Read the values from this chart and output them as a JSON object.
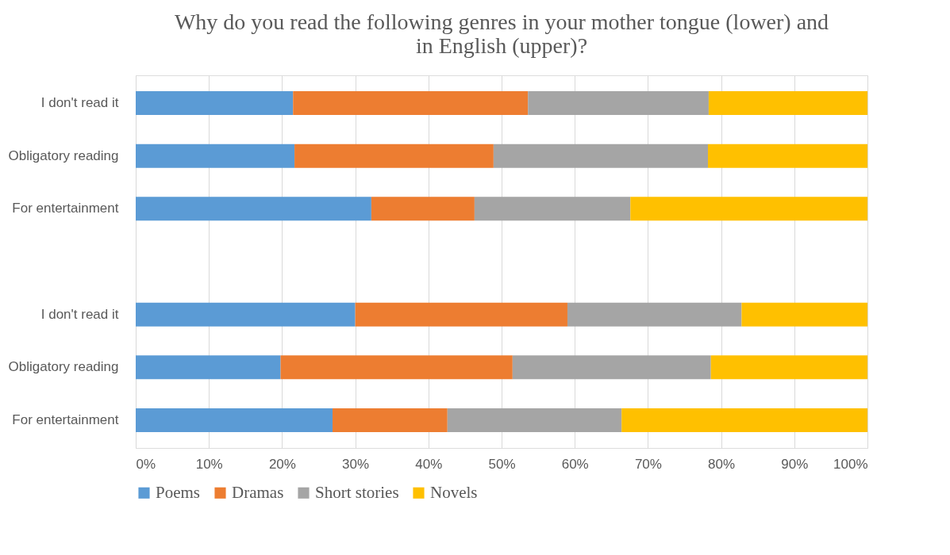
{
  "chart_data": {
    "type": "bar",
    "orientation": "horizontal",
    "stacked": true,
    "title": "Why do you read the following genres in your mother tongue (lower) and in English (upper)?",
    "categories": [
      "I don't read it",
      "Obligatory reading",
      "For entertainment",
      null,
      "I don't read it",
      "Obligatory reading",
      "For entertainment"
    ],
    "series": [
      {
        "name": "Poems",
        "color": "#5b9bd5",
        "values": [
          21.5,
          21.7,
          32.2,
          null,
          30.0,
          19.8,
          26.9
        ]
      },
      {
        "name": "Dramas",
        "color": "#ed7d31",
        "values": [
          32.1,
          27.2,
          14.1,
          null,
          29.0,
          31.7,
          15.7
        ]
      },
      {
        "name": "Short stories",
        "color": "#a5a5a5",
        "values": [
          24.7,
          29.3,
          21.3,
          null,
          23.8,
          27.1,
          23.8
        ]
      },
      {
        "name": "Novels",
        "color": "#ffc000",
        "values": [
          21.7,
          21.8,
          32.4,
          null,
          17.2,
          21.4,
          33.6
        ]
      }
    ],
    "xlim": [
      0,
      100
    ],
    "xticks": [
      {
        "value": 0,
        "label": "0%"
      },
      {
        "value": 10,
        "label": "10%"
      },
      {
        "value": 20,
        "label": "20%"
      },
      {
        "value": 30,
        "label": "30%"
      },
      {
        "value": 40,
        "label": "40%"
      },
      {
        "value": 50,
        "label": "50%"
      },
      {
        "value": 60,
        "label": "60%"
      },
      {
        "value": 70,
        "label": "70%"
      },
      {
        "value": 80,
        "label": "80%"
      },
      {
        "value": 90,
        "label": "90%"
      },
      {
        "value": 100,
        "label": "100%"
      }
    ],
    "grid": "x",
    "legend": "bottom"
  }
}
